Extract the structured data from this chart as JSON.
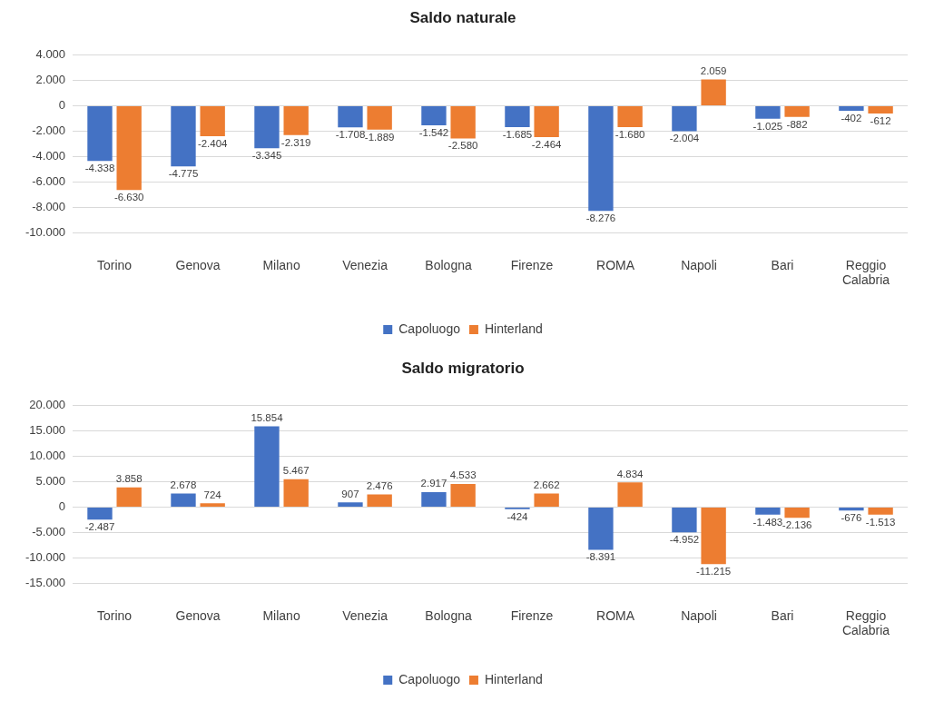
{
  "chart_data": [
    {
      "type": "bar",
      "title": "Saldo naturale",
      "categories": [
        "Torino",
        "Genova",
        "Milano",
        "Venezia",
        "Bologna",
        "Firenze",
        "ROMA",
        "Napoli",
        "Bari",
        "Reggio Calabria"
      ],
      "series": [
        {
          "name": "Capoluogo",
          "color": "#4472c4",
          "values": [
            -4338,
            -4775,
            -3345,
            -1708,
            -1542,
            -1685,
            -8276,
            -2004,
            -1025,
            -402
          ],
          "value_labels": [
            "-4.338",
            "-4.775",
            "-3.345",
            "-1.708",
            "-1.542",
            "-1.685",
            "-8.276",
            "-2.004",
            "-1.025",
            "-402"
          ]
        },
        {
          "name": "Hinterland",
          "color": "#ed7d31",
          "values": [
            -6630,
            -2404,
            -2319,
            -1889,
            -2580,
            -2464,
            -1680,
            2059,
            -882,
            -612
          ],
          "value_labels": [
            "-6.630",
            "-2.404",
            "-2.319",
            "-1.889",
            "-2.580",
            "-2.464",
            "-1.680",
            "2.059",
            "-882",
            "-612"
          ]
        }
      ],
      "ylim": [
        -10000,
        4000
      ],
      "yticks": [
        {
          "value": -10000,
          "label": "-10.000"
        },
        {
          "value": -8000,
          "label": "-8.000"
        },
        {
          "value": -6000,
          "label": "-6.000"
        },
        {
          "value": -4000,
          "label": "-4.000"
        },
        {
          "value": -2000,
          "label": "-2.000"
        },
        {
          "value": 0,
          "label": "0"
        },
        {
          "value": 2000,
          "label": "2.000"
        },
        {
          "value": 4000,
          "label": "4.000"
        }
      ],
      "grid": "y",
      "legend": "bottom"
    },
    {
      "type": "bar",
      "title": "Saldo migratorio",
      "categories": [
        "Torino",
        "Genova",
        "Milano",
        "Venezia",
        "Bologna",
        "Firenze",
        "ROMA",
        "Napoli",
        "Bari",
        "Reggio Calabria"
      ],
      "series": [
        {
          "name": "Capoluogo",
          "color": "#4472c4",
          "values": [
            -2487,
            2678,
            15854,
            907,
            2917,
            -424,
            -8391,
            -4952,
            -1483,
            -676
          ],
          "value_labels": [
            "-2.487",
            "2.678",
            "15.854",
            "907",
            "2.917",
            "-424",
            "-8.391",
            "-4.952",
            "-1.483",
            "-676"
          ]
        },
        {
          "name": "Hinterland",
          "color": "#ed7d31",
          "values": [
            3858,
            724,
            5467,
            2476,
            4533,
            2662,
            4834,
            -11215,
            -2136,
            -1513
          ],
          "value_labels": [
            "3.858",
            "724",
            "5.467",
            "2.476",
            "4.533",
            "2.662",
            "4.834",
            "-11.215",
            "-2.136",
            "-1.513"
          ]
        }
      ],
      "ylim": [
        -15000,
        20000
      ],
      "yticks": [
        {
          "value": -15000,
          "label": "-15.000"
        },
        {
          "value": -10000,
          "label": "-10.000"
        },
        {
          "value": -5000,
          "label": "-5.000"
        },
        {
          "value": 0,
          "label": "0"
        },
        {
          "value": 5000,
          "label": "5.000"
        },
        {
          "value": 10000,
          "label": "10.000"
        },
        {
          "value": 15000,
          "label": "15.000"
        },
        {
          "value": 20000,
          "label": "20.000"
        }
      ],
      "grid": "y",
      "legend": "bottom"
    }
  ]
}
